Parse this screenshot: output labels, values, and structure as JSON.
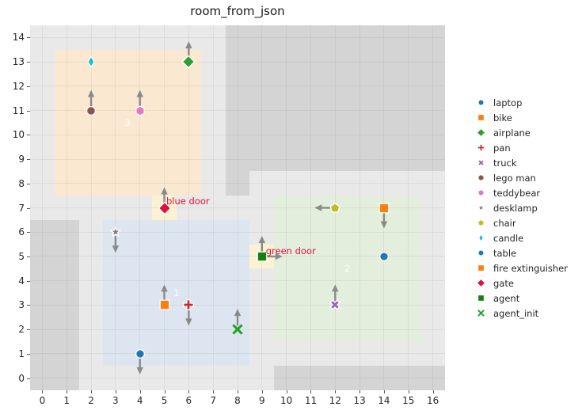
{
  "title": "room_from_json",
  "axes": {
    "x_ticks": [
      0,
      1,
      2,
      3,
      4,
      5,
      6,
      7,
      8,
      9,
      10,
      11,
      12,
      13,
      14,
      15,
      16
    ],
    "y_ticks": [
      0,
      1,
      2,
      3,
      4,
      5,
      6,
      7,
      8,
      9,
      10,
      11,
      12,
      13,
      14
    ],
    "xlim": [
      -0.5,
      16.5
    ],
    "ylim": [
      -0.5,
      14.5
    ],
    "grid": "on"
  },
  "colors": {
    "figure_bg": "#ffffff",
    "plot_bg": "#e9e9e9",
    "wall": "#d4d4d4",
    "door_cell": "#fbf2d4",
    "arrow": "#8a8a8a",
    "door_text": "#dc143c",
    "room_label_text": "#ffffff",
    "tick_text": "#262626"
  },
  "chart_data": {
    "type": "scatter",
    "title": "room_from_json",
    "xlabel": "",
    "ylabel": "",
    "xlim": [
      -0.5,
      16.5
    ],
    "ylim": [
      -0.5,
      14.5
    ],
    "legend_position": "right-outside",
    "walls": [
      {
        "name": "left-wall",
        "x": -0.5,
        "y": -0.5,
        "w": 2,
        "h": 7
      },
      {
        "name": "top-right-wall",
        "x": 7.5,
        "y": 8.5,
        "w": 9,
        "h": 6
      },
      {
        "name": "top-right-wall-notch",
        "x": 7.5,
        "y": 7.5,
        "w": 1,
        "h": 1
      },
      {
        "name": "bottom-right-wall",
        "x": 9.5,
        "y": -0.5,
        "w": 7,
        "h": 1
      }
    ],
    "rooms": [
      {
        "label": "1",
        "x": 2.5,
        "y": 0.5,
        "w": 6,
        "h": 6,
        "color": "#dde6f0",
        "label_x": 5.5,
        "label_y": 3.5
      },
      {
        "label": "2",
        "x": 9.5,
        "y": 1.5,
        "w": 6,
        "h": 6,
        "color": "#e3eedd",
        "label_x": 12.5,
        "label_y": 4.5
      },
      {
        "label": "3",
        "x": 0.5,
        "y": 7.5,
        "w": 6,
        "h": 6,
        "color": "#fae8d1",
        "label_x": 3.5,
        "label_y": 10.5
      }
    ],
    "doors": [
      {
        "name": "blue-door-cell",
        "x": 4.5,
        "y": 6.5,
        "w": 1,
        "h": 1,
        "color": "#fbf2d4"
      },
      {
        "name": "green-door-cell",
        "x": 8.5,
        "y": 4.5,
        "w": 1,
        "h": 1,
        "color": "#fbf2d4"
      }
    ],
    "door_labels": [
      {
        "text": "blue door",
        "x": 5.08,
        "y": 7.28,
        "color": "#dc143c"
      },
      {
        "text": "green door",
        "x": 9.16,
        "y": 5.23,
        "color": "#dc143c"
      }
    ],
    "objects": [
      {
        "name": "candle",
        "shape": "thindiamond",
        "color": "#17becf",
        "x": 2,
        "y": 13,
        "arrows": []
      },
      {
        "name": "airplane",
        "shape": "diamond",
        "color": "#2ca02c",
        "x": 6,
        "y": 13,
        "arrows": [
          "up"
        ]
      },
      {
        "name": "lego man",
        "shape": "octagon",
        "color": "#8c564b",
        "x": 2,
        "y": 11,
        "arrows": [
          "up"
        ]
      },
      {
        "name": "teddybear",
        "shape": "hexagon",
        "color": "#e377c2",
        "x": 4,
        "y": 11,
        "arrows": [
          "up"
        ]
      },
      {
        "name": "gate",
        "shape": "diamond",
        "color": "#dc143c",
        "x": 5,
        "y": 7,
        "arrows": [
          "up"
        ]
      },
      {
        "name": "desklamp",
        "shape": "star",
        "color": "#7f7f7f",
        "x": 3,
        "y": 6,
        "arrows": [
          "down"
        ]
      },
      {
        "name": "bike",
        "shape": "square",
        "color": "#ff7f0e",
        "x": 5,
        "y": 3,
        "arrows": [
          "up"
        ]
      },
      {
        "name": "pan",
        "shape": "plus",
        "color": "#d62728",
        "x": 6,
        "y": 3,
        "arrows": [
          "down"
        ]
      },
      {
        "name": "laptop",
        "shape": "circle",
        "color": "#1f77b4",
        "x": 4,
        "y": 1,
        "arrows": [
          "down"
        ]
      },
      {
        "name": "agent_init",
        "shape": "xline",
        "color": "#23a123",
        "x": 8,
        "y": 2,
        "arrows": [
          "up"
        ]
      },
      {
        "name": "agent",
        "shape": "square",
        "color": "#128112",
        "x": 9,
        "y": 5,
        "arrows": [
          "up",
          "right"
        ]
      },
      {
        "name": "chair",
        "shape": "pentagon",
        "color": "#bcbd22",
        "x": 12,
        "y": 7,
        "arrows": [
          "left"
        ]
      },
      {
        "name": "fire extinguisher",
        "shape": "square",
        "color": "#ff7f0e",
        "x": 14,
        "y": 7,
        "arrows": [
          "down"
        ]
      },
      {
        "name": "truck",
        "shape": "xfilled",
        "color": "#9467bd",
        "x": 12,
        "y": 3,
        "arrows": [
          "up"
        ]
      },
      {
        "name": "table",
        "shape": "circle",
        "color": "#1f77b4",
        "x": 14,
        "y": 5,
        "arrows": []
      }
    ]
  },
  "legend": {
    "items": [
      {
        "label": "laptop",
        "shape": "circle",
        "color": "#1f77b4"
      },
      {
        "label": "bike",
        "shape": "square",
        "color": "#ff7f0e"
      },
      {
        "label": "airplane",
        "shape": "diamond",
        "color": "#2ca02c"
      },
      {
        "label": "pan",
        "shape": "plus",
        "color": "#d62728"
      },
      {
        "label": "truck",
        "shape": "xfilled",
        "color": "#9467bd"
      },
      {
        "label": "lego man",
        "shape": "octagon",
        "color": "#8c564b"
      },
      {
        "label": "teddybear",
        "shape": "hexagon",
        "color": "#e377c2"
      },
      {
        "label": "desklamp",
        "shape": "star",
        "color": "#7f7f7f"
      },
      {
        "label": "chair",
        "shape": "pentagon",
        "color": "#bcbd22"
      },
      {
        "label": "candle",
        "shape": "thindiamond",
        "color": "#17becf"
      },
      {
        "label": "table",
        "shape": "circle",
        "color": "#1f77b4"
      },
      {
        "label": "fire extinguisher",
        "shape": "square",
        "color": "#ff7f0e"
      },
      {
        "label": "gate",
        "shape": "diamond",
        "color": "#dc143c"
      },
      {
        "label": "agent",
        "shape": "square",
        "color": "#128112"
      },
      {
        "label": "agent_init",
        "shape": "xline",
        "color": "#23a123"
      }
    ]
  }
}
